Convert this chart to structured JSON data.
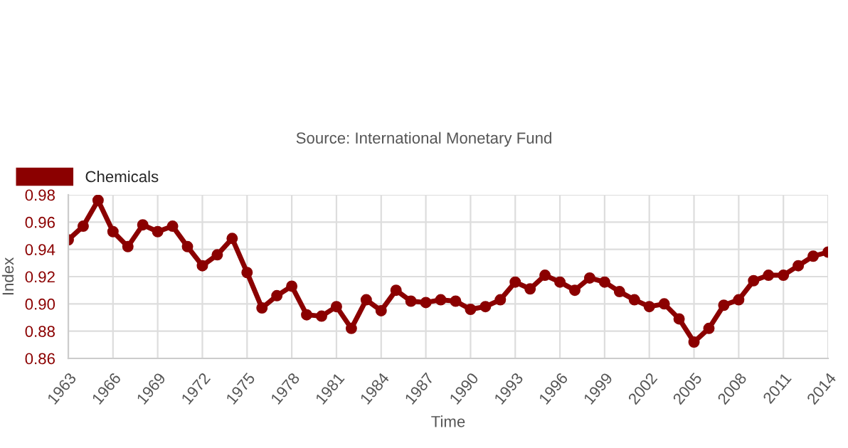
{
  "chart_data": {
    "type": "line",
    "xlabel": "Time",
    "ylabel": "Index",
    "annotations": [
      "Source: International Monetary Fund"
    ],
    "x": [
      1963,
      1964,
      1965,
      1966,
      1967,
      1968,
      1969,
      1970,
      1971,
      1972,
      1973,
      1974,
      1975,
      1976,
      1977,
      1978,
      1979,
      1980,
      1981,
      1982,
      1983,
      1984,
      1985,
      1986,
      1987,
      1988,
      1989,
      1990,
      1991,
      1992,
      1993,
      1994,
      1995,
      1996,
      1997,
      1998,
      1999,
      2000,
      2001,
      2002,
      2003,
      2004,
      2005,
      2006,
      2007,
      2008,
      2009,
      2010,
      2011,
      2012,
      2013,
      2014
    ],
    "series": [
      {
        "name": "Chemicals",
        "color": "#8b0000",
        "values": [
          0.947,
          0.957,
          0.976,
          0.953,
          0.942,
          0.958,
          0.953,
          0.957,
          0.942,
          0.928,
          0.936,
          0.948,
          0.923,
          0.897,
          0.906,
          0.913,
          0.892,
          0.891,
          0.898,
          0.882,
          0.903,
          0.895,
          0.91,
          0.902,
          0.901,
          0.903,
          0.902,
          0.896,
          0.898,
          0.903,
          0.916,
          0.911,
          0.921,
          0.916,
          0.91,
          0.919,
          0.916,
          0.909,
          0.903,
          0.898,
          0.9,
          0.889,
          0.872,
          0.882,
          0.899,
          0.903,
          0.917,
          0.921,
          0.921,
          0.928,
          0.935,
          0.938
        ]
      }
    ],
    "xlim": [
      1963,
      2014
    ],
    "xticks": [
      1963,
      1966,
      1969,
      1972,
      1975,
      1978,
      1981,
      1984,
      1987,
      1990,
      1993,
      1996,
      1999,
      2002,
      2005,
      2008,
      2011,
      2014
    ],
    "ylim": [
      0.86,
      0.98
    ],
    "yticks": [
      {
        "value": 0.86,
        "label": "0.86"
      },
      {
        "value": 0.88,
        "label": "0.88"
      },
      {
        "value": 0.9,
        "label": "0.90"
      },
      {
        "value": 0.92,
        "label": "0.92"
      },
      {
        "value": 0.94,
        "label": "0.94"
      },
      {
        "value": 0.96,
        "label": "0.96"
      },
      {
        "value": 0.98,
        "label": "0.98"
      }
    ],
    "grid": true,
    "legend": "top left",
    "marker": "circle",
    "line_style": "solid"
  }
}
